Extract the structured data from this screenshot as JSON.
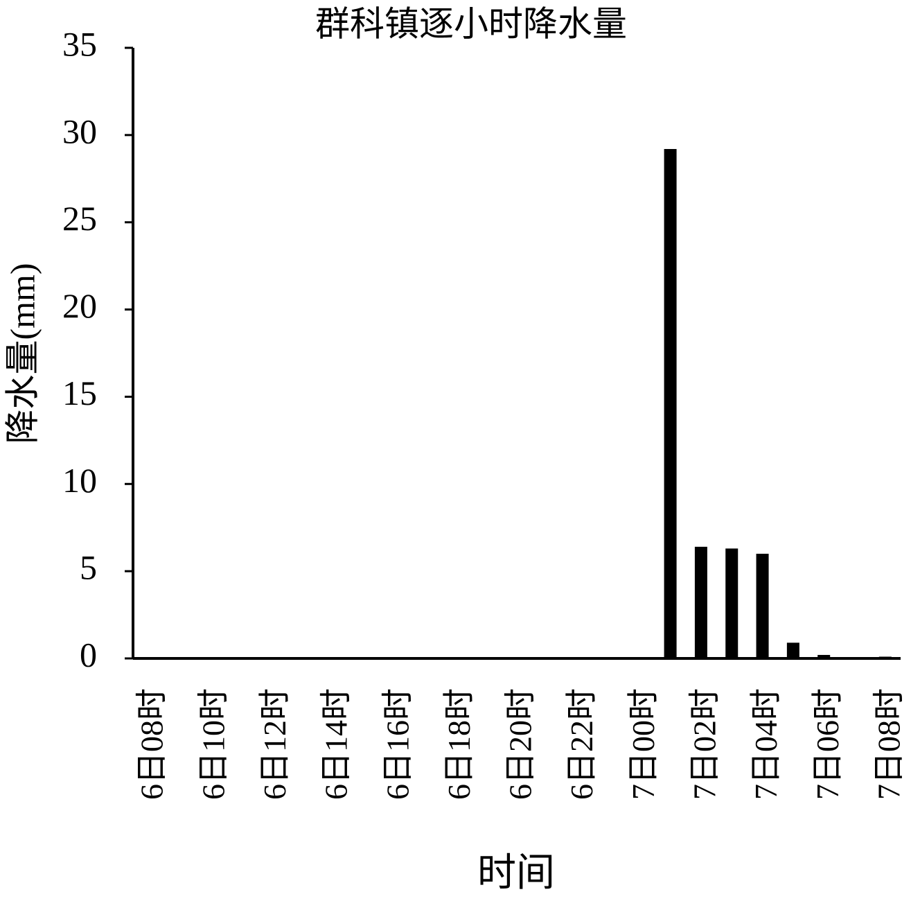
{
  "chart_data": {
    "type": "bar",
    "title": "群科镇逐小时降水量",
    "x_label": "时间",
    "y_label": "降水量(mm)",
    "categories": [
      "6日08时",
      null,
      "6日10时",
      null,
      "6日12时",
      null,
      "6日14时",
      null,
      "6日16时",
      null,
      "6日18时",
      null,
      "6日20时",
      null,
      "6日22时",
      null,
      "7日00时",
      null,
      "7日02时",
      null,
      "7日04时",
      null,
      "7日06时",
      null,
      "7日08时"
    ],
    "values": [
      0,
      0,
      0,
      0,
      0,
      0,
      0,
      0,
      0,
      0,
      0,
      0,
      0,
      0,
      0,
      0,
      0,
      29.2,
      6.4,
      6.3,
      6.0,
      0.9,
      0.2,
      0,
      0.1
    ],
    "color": "#000000",
    "ylim": [
      0,
      35
    ],
    "yticks": [
      0,
      5,
      10,
      15,
      20,
      25,
      30,
      35
    ],
    "grid": false
  }
}
